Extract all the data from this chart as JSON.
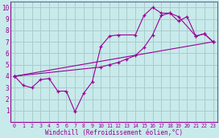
{
  "bg_color": "#c8eaea",
  "grid_color": "#aacccc",
  "line_color": "#990099",
  "marker": "+",
  "series1": {
    "x": [
      0,
      1,
      2,
      3,
      4,
      5,
      6,
      7,
      8,
      9,
      10,
      11,
      12,
      14,
      15,
      16,
      17,
      18,
      19,
      21,
      22,
      23
    ],
    "y": [
      4.0,
      3.2,
      3.0,
      3.7,
      3.8,
      2.7,
      2.7,
      0.9,
      2.5,
      3.5,
      6.6,
      7.5,
      7.6,
      7.6,
      9.3,
      10.0,
      9.5,
      9.5,
      9.2,
      7.5,
      7.7,
      7.0
    ]
  },
  "series2": {
    "x": [
      0,
      10,
      11,
      12,
      13,
      14,
      15,
      16,
      17,
      18,
      19,
      20,
      21,
      22,
      23
    ],
    "y": [
      4.0,
      4.8,
      5.0,
      5.2,
      5.5,
      5.8,
      6.5,
      7.6,
      9.3,
      9.5,
      8.8,
      9.2,
      7.5,
      7.7,
      7.0
    ]
  },
  "series3": {
    "x": [
      0,
      23
    ],
    "y": [
      4.0,
      7.0
    ]
  },
  "xlim": [
    -0.5,
    23.5
  ],
  "ylim": [
    0,
    10.5
  ],
  "xticks": [
    0,
    1,
    2,
    3,
    4,
    5,
    6,
    7,
    8,
    9,
    10,
    11,
    12,
    13,
    14,
    15,
    16,
    17,
    18,
    19,
    20,
    21,
    22,
    23
  ],
  "yticks": [
    1,
    2,
    3,
    4,
    5,
    6,
    7,
    8,
    9,
    10
  ],
  "xlabel": "Windchill (Refroidissement éolien,°C)"
}
